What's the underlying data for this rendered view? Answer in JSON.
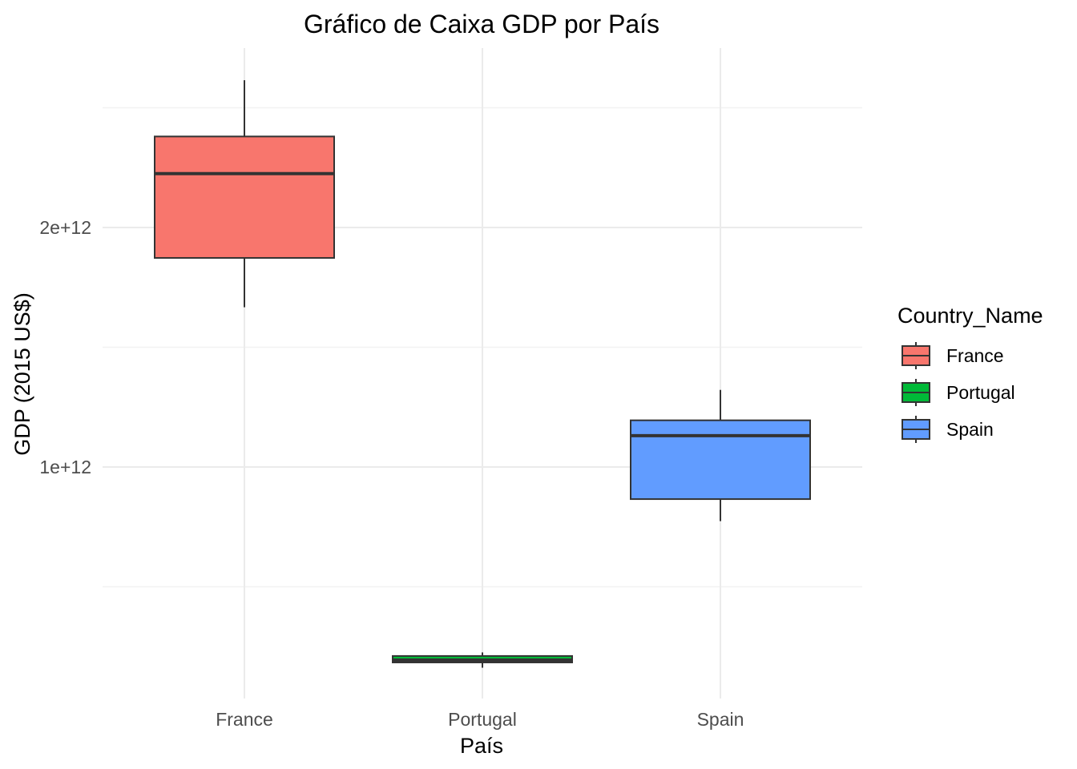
{
  "chart_data": {
    "type": "boxplot",
    "title": "Gráfico de Caixa GDP por País",
    "xlabel": "País",
    "ylabel": "GDP (2015 US$)",
    "categories": [
      "France",
      "Portugal",
      "Spain"
    ],
    "y_ticks": [
      {
        "value": 1000000000000,
        "label": "1e+12"
      },
      {
        "value": 2000000000000,
        "label": "2e+12"
      }
    ],
    "y_minor_ticks": [
      500000000000,
      1500000000000,
      2500000000000
    ],
    "ylim": [
      100000000000,
      2750000000000
    ],
    "grid": true,
    "series": [
      {
        "category": "France",
        "min": 1667000000000,
        "q1": 1873000000000,
        "median": 2225000000000,
        "q3": 2380000000000,
        "max": 2615000000000,
        "color": "#F8766D"
      },
      {
        "category": "Portugal",
        "min": 162000000000,
        "q1": 184000000000,
        "median": 194000000000,
        "q3": 211000000000,
        "max": 226000000000,
        "color": "#00BA38"
      },
      {
        "category": "Spain",
        "min": 774000000000,
        "q1": 866000000000,
        "median": 1131000000000,
        "q3": 1195000000000,
        "max": 1322000000000,
        "color": "#619CFF"
      }
    ],
    "legend": {
      "title": "Country_Name",
      "placement": "right",
      "entries": [
        {
          "label": "France",
          "color": "#F8766D"
        },
        {
          "label": "Portugal",
          "color": "#00BA38"
        },
        {
          "label": "Spain",
          "color": "#619CFF"
        }
      ]
    }
  }
}
